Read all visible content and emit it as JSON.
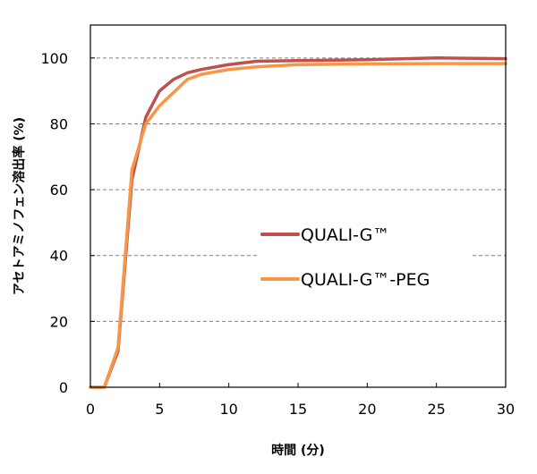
{
  "chart_data": {
    "type": "line",
    "title": "",
    "xlabel": "時間 (分)",
    "ylabel": "アセトアミノフェン溶出率 (%)",
    "xlim": [
      0,
      30
    ],
    "ylim": [
      0,
      110
    ],
    "xticks": [
      0,
      5,
      10,
      15,
      20,
      25,
      30
    ],
    "yticks": [
      0,
      20,
      40,
      60,
      80,
      100
    ],
    "grid": "horizontal-dashed",
    "legend_position": "center-right",
    "series": [
      {
        "name": "QUALI-G™",
        "color": "#c0504d",
        "x": [
          0,
          1,
          2,
          3,
          4,
          5,
          6,
          7,
          8,
          10,
          12,
          15,
          20,
          25,
          30
        ],
        "y": [
          0,
          0,
          11,
          63,
          82,
          90,
          93.5,
          95.5,
          96.5,
          98,
          99,
          99.2,
          99.5,
          100,
          99.8
        ]
      },
      {
        "name": "QUALI-G™-PEG",
        "color": "#f79646",
        "x": [
          0,
          1,
          2,
          3,
          4,
          5,
          6,
          7,
          8,
          10,
          12,
          15,
          20,
          25,
          30
        ],
        "y": [
          0,
          0,
          12,
          66,
          80,
          85.5,
          89.5,
          93.5,
          95,
          96.5,
          97.3,
          98,
          98.2,
          98.3,
          98.3
        ]
      }
    ]
  }
}
